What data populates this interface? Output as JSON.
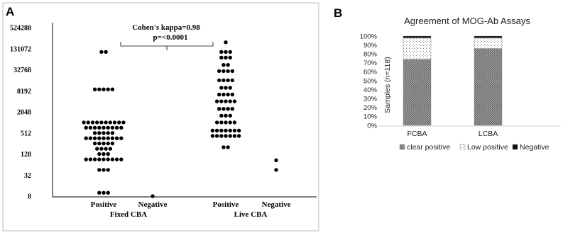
{
  "chart_data": [
    {
      "type": "scatter",
      "panel_label": "A",
      "title": "",
      "xlabel": "",
      "ylabel": "",
      "y_scale": "log2",
      "ylim": [
        8,
        524288
      ],
      "y_ticks": [
        "8",
        "32",
        "128",
        "512",
        "2048",
        "8192",
        "32768",
        "131072",
        "524288"
      ],
      "categories": [
        "Positive",
        "Negative",
        "Positive",
        "Negative"
      ],
      "groups": [
        "Fixed CBA",
        "Live  CBA"
      ],
      "annotation": {
        "line1": "Cohen's kappa=0.98",
        "line2": "p=<0.0001"
      },
      "dot_color": "#000000",
      "series": [
        {
          "category_index": 0,
          "values": [
            106000,
            106000,
            9000,
            9000,
            9000,
            9000,
            9000,
            1024,
            1024,
            1024,
            1024,
            1024,
            1024,
            1024,
            1024,
            1024,
            1024,
            724,
            724,
            724,
            724,
            724,
            724,
            724,
            724,
            724,
            512,
            512,
            512,
            512,
            512,
            362,
            362,
            362,
            362,
            362,
            362,
            362,
            362,
            362,
            256,
            256,
            256,
            256,
            256,
            181,
            181,
            181,
            181,
            128,
            128,
            128,
            90,
            90,
            90,
            90,
            90,
            90,
            90,
            90,
            90,
            45,
            45,
            45,
            10,
            10,
            10
          ]
        },
        {
          "category_index": 1,
          "values": [
            8
          ]
        },
        {
          "category_index": 2,
          "values": [
            200000,
            106000,
            106000,
            106000,
            73000,
            73000,
            73000,
            45000,
            45000,
            30000,
            30000,
            30000,
            30000,
            16384,
            16384,
            16384,
            16384,
            10000,
            10000,
            10000,
            6400,
            6400,
            6400,
            6400,
            4096,
            4096,
            4096,
            4096,
            4096,
            2500,
            2500,
            2500,
            2500,
            1600,
            1600,
            1600,
            1024,
            1024,
            1024,
            1024,
            1024,
            600,
            600,
            600,
            600,
            600,
            600,
            600,
            420,
            420,
            420,
            420,
            420,
            420,
            420,
            200,
            200
          ]
        },
        {
          "category_index": 3,
          "values": [
            85,
            45
          ]
        }
      ]
    },
    {
      "type": "stacked_bar",
      "panel_label": "B",
      "title": "Agreement of MOG-Ab Assays",
      "xlabel": "",
      "ylabel": "Samples (n=118)",
      "ylim": [
        0,
        100
      ],
      "y_ticks": [
        "0%",
        "10%",
        "20%",
        "30%",
        "40%",
        "50%",
        "60%",
        "70%",
        "80%",
        "90%",
        "100%"
      ],
      "categories": [
        "FCBA",
        "LCBA"
      ],
      "legend_position": "bottom",
      "series": [
        {
          "name": "clear positive",
          "values": [
            74,
            86
          ],
          "color": "#8c8c8c"
        },
        {
          "name": "Low positive",
          "values": [
            24,
            12
          ],
          "color": "#e6e6e6"
        },
        {
          "name": "Negative",
          "values": [
            2,
            2
          ],
          "color": "#111111"
        }
      ]
    }
  ]
}
